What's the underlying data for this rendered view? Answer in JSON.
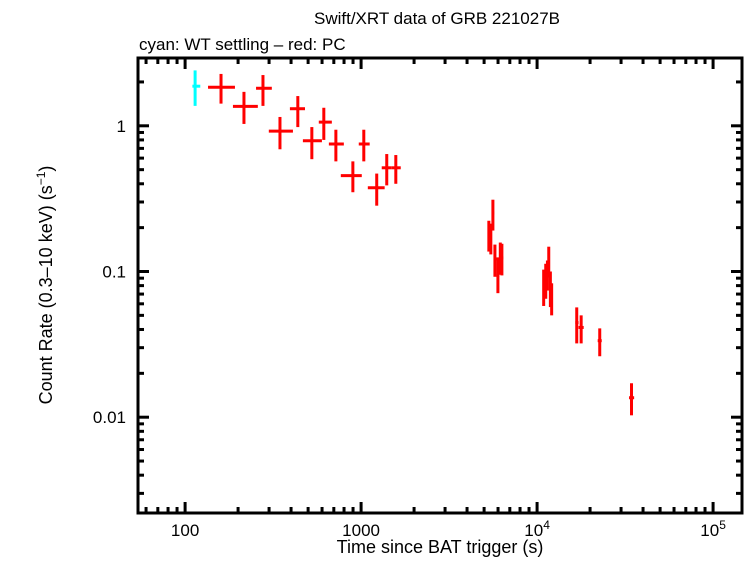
{
  "chart_data": {
    "type": "scatter",
    "title": "Swift/XRT data of GRB 221027B",
    "subtitle": "cyan: WT settling – red: PC",
    "xlabel": "Time since BAT trigger (s)",
    "ylabel": "Count Rate (0.3–10 keV) (s",
    "ylabel_sup": "−1",
    "ylabel_end": ")",
    "xscale": "log",
    "yscale": "log",
    "xlim": [
      54,
      146000
    ],
    "ylim": [
      0.0022,
      2.92
    ],
    "grid": false,
    "xticks": [
      {
        "value": 100,
        "base": "100",
        "exp": ""
      },
      {
        "value": 1000,
        "base": "1000",
        "exp": ""
      },
      {
        "value": 10000,
        "base": "10",
        "exp": "4"
      },
      {
        "value": 100000,
        "base": "10",
        "exp": "5"
      }
    ],
    "yticks": [
      {
        "value": 1,
        "label": "1"
      },
      {
        "value": 0.1,
        "label": "0.1"
      },
      {
        "value": 0.01,
        "label": "0.01"
      }
    ],
    "point_format": [
      "time",
      "time_low",
      "time_high",
      "rate",
      "rate_low",
      "rate_high"
    ],
    "series": [
      {
        "name": "WT settling",
        "color": "#00ffff",
        "points": [
          [
            114,
            110,
            122,
            1.87,
            1.37,
            2.4
          ]
        ]
      },
      {
        "name": "PC",
        "color": "#ff0000",
        "points": [
          [
            160,
            135,
            192,
            1.84,
            1.42,
            2.27
          ],
          [
            216,
            187,
            259,
            1.36,
            1.03,
            1.71
          ],
          [
            277,
            253,
            311,
            1.81,
            1.37,
            2.23
          ],
          [
            346,
            299,
            410,
            0.92,
            0.69,
            1.15
          ],
          [
            437,
            394,
            480,
            1.31,
            0.98,
            1.6
          ],
          [
            525,
            467,
            599,
            0.79,
            0.59,
            0.98
          ],
          [
            614,
            575,
            682,
            1.06,
            0.8,
            1.33
          ],
          [
            719,
            656,
            798,
            0.75,
            0.57,
            0.94
          ],
          [
            898,
            767,
            1009,
            0.455,
            0.35,
            0.57
          ],
          [
            1036,
            970,
            1119,
            0.75,
            0.57,
            0.94
          ],
          [
            1227,
            1092,
            1361,
            0.376,
            0.283,
            0.47
          ],
          [
            1399,
            1310,
            1493,
            0.515,
            0.39,
            0.64
          ],
          [
            1575,
            1493,
            1680,
            0.515,
            0.4,
            0.63
          ],
          [
            5320,
            5230,
            5410,
            0.181,
            0.137,
            0.223
          ],
          [
            5460,
            5410,
            5520,
            0.17,
            0.131,
            0.213
          ],
          [
            5610,
            5520,
            5700,
            0.252,
            0.191,
            0.311
          ],
          [
            5760,
            5700,
            5870,
            0.122,
            0.092,
            0.153
          ],
          [
            5990,
            5870,
            6100,
            0.094,
            0.071,
            0.125
          ],
          [
            6180,
            6100,
            6250,
            0.124,
            0.095,
            0.158
          ],
          [
            6310,
            6250,
            6420,
            0.124,
            0.094,
            0.155
          ],
          [
            10900,
            10800,
            11050,
            0.078,
            0.058,
            0.103
          ],
          [
            11200,
            11050,
            11330,
            0.09,
            0.065,
            0.113
          ],
          [
            11450,
            11330,
            11550,
            0.102,
            0.074,
            0.119
          ],
          [
            11650,
            11550,
            11780,
            0.116,
            0.091,
            0.148
          ],
          [
            11900,
            11780,
            12000,
            0.078,
            0.057,
            0.1
          ],
          [
            12100,
            12000,
            12300,
            0.066,
            0.05,
            0.083
          ],
          [
            16800,
            16500,
            17200,
            0.0446,
            0.0321,
            0.0567
          ],
          [
            17800,
            17200,
            18400,
            0.0413,
            0.0321,
            0.05
          ],
          [
            22700,
            22100,
            23300,
            0.0335,
            0.0262,
            0.0407
          ],
          [
            34400,
            33300,
            35600,
            0.0136,
            0.0103,
            0.0171
          ]
        ]
      }
    ]
  }
}
